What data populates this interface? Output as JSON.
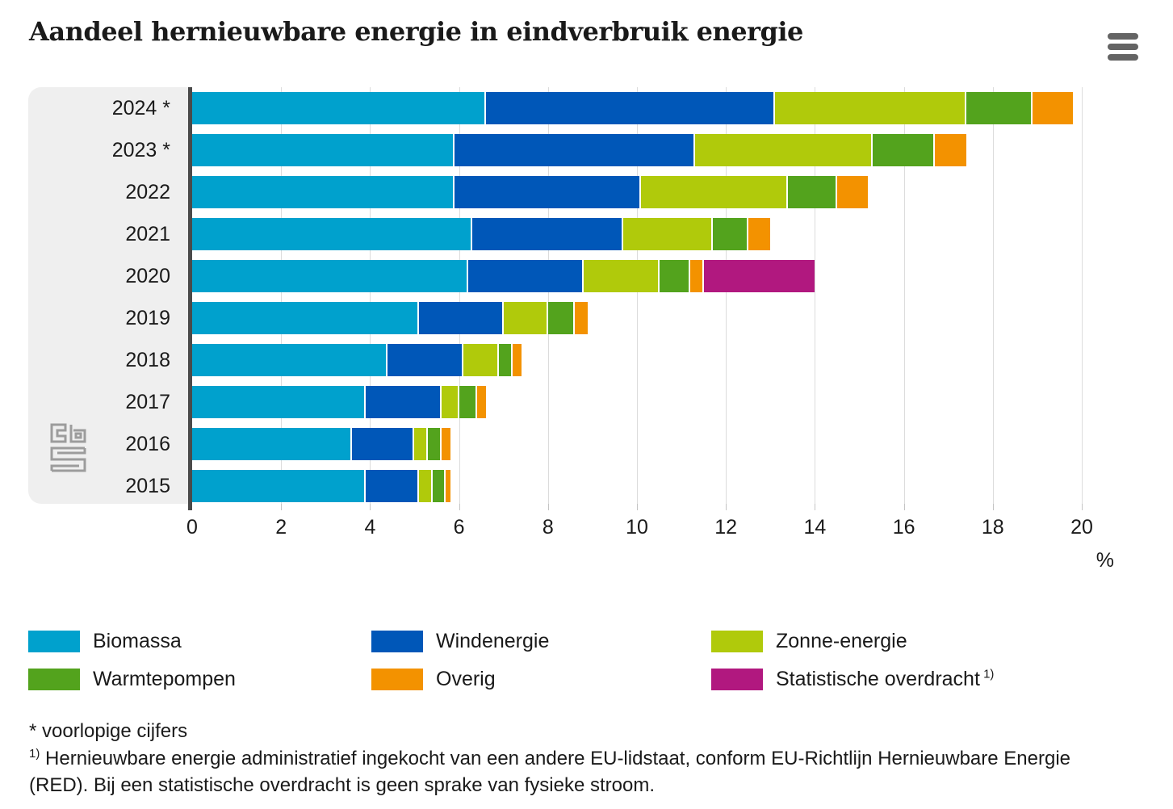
{
  "header": {
    "title": "Aandeel hernieuwbare energie in eindverbruik energie"
  },
  "menu": {
    "icon": "hamburger-icon"
  },
  "chart_data": {
    "type": "bar",
    "orientation": "horizontal",
    "stacked": true,
    "title": "Aandeel hernieuwbare energie in eindverbruik energie",
    "xlabel": "%",
    "xlim": [
      0,
      20
    ],
    "xticks": [
      0,
      2,
      4,
      6,
      8,
      10,
      12,
      14,
      16,
      18,
      20
    ],
    "grid": true,
    "legend_position": "bottom",
    "categories": [
      "2024 *",
      "2023 *",
      "2022",
      "2021",
      "2020",
      "2019",
      "2018",
      "2017",
      "2016",
      "2015"
    ],
    "series": [
      {
        "id": "biomassa",
        "name": "Biomassa",
        "color": "#00a1cd",
        "values": [
          6.6,
          5.9,
          5.9,
          6.3,
          6.2,
          5.1,
          4.4,
          3.9,
          3.6,
          3.9
        ]
      },
      {
        "id": "windenergie",
        "name": "Windenergie",
        "color": "#0057b8",
        "values": [
          6.5,
          5.4,
          4.2,
          3.4,
          2.6,
          1.9,
          1.7,
          1.7,
          1.4,
          1.2
        ]
      },
      {
        "id": "zonne-energie",
        "name": "Zonne-energie",
        "color": "#b0ca0b",
        "values": [
          4.3,
          4.0,
          3.3,
          2.0,
          1.7,
          1.0,
          0.8,
          0.4,
          0.3,
          0.3
        ]
      },
      {
        "id": "warmtepompen",
        "name": "Warmtepompen",
        "color": "#53a31d",
        "values": [
          1.5,
          1.4,
          1.1,
          0.8,
          0.7,
          0.6,
          0.3,
          0.4,
          0.3,
          0.3
        ]
      },
      {
        "id": "overig",
        "name": "Overig",
        "color": "#f39200",
        "values": [
          0.9,
          0.7,
          0.7,
          0.5,
          0.3,
          0.3,
          0.2,
          0.2,
          0.2,
          0.1
        ]
      },
      {
        "id": "statistische-overdracht",
        "name": "Statistische overdracht",
        "color": "#b1187f",
        "values": [
          0,
          0,
          0,
          0,
          2.5,
          0,
          0,
          0,
          0,
          0
        ]
      }
    ]
  },
  "legend": {
    "items": [
      {
        "id": "biomassa",
        "label": "Biomassa",
        "color": "#00a1cd"
      },
      {
        "id": "windenergie",
        "label": "Windenergie",
        "color": "#0057b8"
      },
      {
        "id": "zonne-energie",
        "label": "Zonne-energie",
        "color": "#b0ca0b"
      },
      {
        "id": "warmtepompen",
        "label": "Warmtepompen",
        "color": "#53a31d"
      },
      {
        "id": "overig",
        "label": "Overig",
        "color": "#f39200"
      },
      {
        "id": "statistische-overdracht",
        "label": "Statistische overdracht",
        "sup": "1)",
        "color": "#b1187f"
      }
    ]
  },
  "footnotes": {
    "star": "* voorlopige cijfers",
    "note1_ref": "1)",
    "note1_text": "Hernieuwbare energie administratief ingekocht van een andere EU-lidstaat, conform EU-Richtlijn Hernieuwbare Energie (RED). Bij een statistische overdracht is geen sprake van fysieke stroom."
  }
}
